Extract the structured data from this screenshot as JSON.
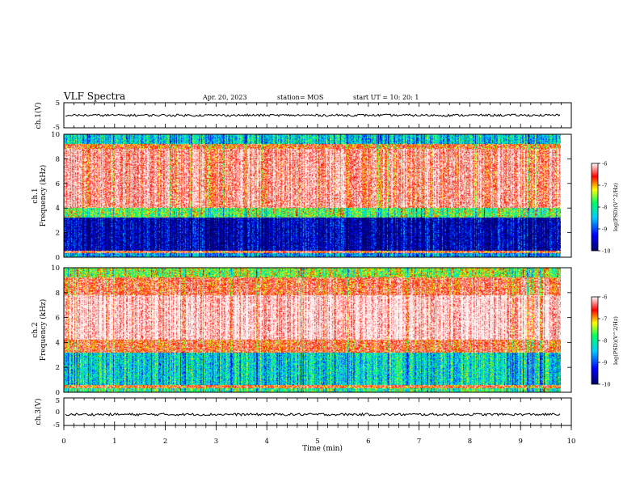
{
  "header": {
    "title": "VLF Spectra",
    "date": "Apr. 20, 2023",
    "station": "station= MOS",
    "start_ut": "start  UT  =   10: 20: 1"
  },
  "chart_data": [
    {
      "type": "line",
      "panel": "ch1-voltage",
      "ylabel": "ch.1(V)",
      "ylim": [
        -5,
        5
      ],
      "yticks": [
        "5",
        "-5"
      ],
      "x_range": [
        0,
        10
      ],
      "trace_level": 0,
      "color": "#000000"
    },
    {
      "type": "heatmap",
      "panel": "ch1-spectrogram",
      "ylabel": "ch.1\nFrequency  (kHz)",
      "ylim": [
        0,
        10
      ],
      "yticks": [
        "0",
        "2",
        "4",
        "6",
        "8",
        "10"
      ],
      "x_range": [
        0,
        9.8
      ],
      "bands": [
        {
          "from": 0,
          "to": 0.3,
          "level": -8.6
        },
        {
          "from": 0.3,
          "to": 0.55,
          "level": -6.4
        },
        {
          "from": 0.55,
          "to": 3.2,
          "level": -9.6
        },
        {
          "from": 3.2,
          "to": 4.0,
          "level": -7.6
        },
        {
          "from": 4.0,
          "to": 8.8,
          "level": -6.0
        },
        {
          "from": 8.8,
          "to": 9.2,
          "level": -6.6
        },
        {
          "from": 9.2,
          "to": 10,
          "level": -8.3
        }
      ],
      "colorbar": {
        "label": "log(PSD)(V^2/Hz)",
        "range": [
          -10,
          -6
        ],
        "ticks": [
          "-6",
          "-7",
          "-8",
          "-9",
          "-10"
        ]
      }
    },
    {
      "type": "heatmap",
      "panel": "ch2-spectrogram",
      "ylabel": "ch.2\nFrequency  (kHz)",
      "ylim": [
        0,
        10
      ],
      "yticks": [
        "0",
        "2",
        "4",
        "6",
        "8",
        "10"
      ],
      "x_range": [
        0,
        9.8
      ],
      "bands": [
        {
          "from": 0,
          "to": 0.3,
          "level": -7.8
        },
        {
          "from": 0.3,
          "to": 0.6,
          "level": -6.5
        },
        {
          "from": 0.6,
          "to": 3.2,
          "level": -8.2
        },
        {
          "from": 3.2,
          "to": 4.2,
          "level": -6.4
        },
        {
          "from": 4.2,
          "to": 7.8,
          "level": -5.6
        },
        {
          "from": 7.8,
          "to": 9.2,
          "level": -6.3
        },
        {
          "from": 9.2,
          "to": 10,
          "level": -7.4
        }
      ],
      "colorbar": {
        "label": "log(PSD)(V^2/Hz)",
        "range": [
          -10,
          -6
        ],
        "ticks": [
          "-6",
          "-7",
          "-8",
          "-9",
          "-10"
        ]
      }
    },
    {
      "type": "line",
      "panel": "ch3-voltage",
      "ylabel": "ch.3(V)",
      "ylim": [
        -5,
        5
      ],
      "yticks": [
        "5",
        "0",
        "-5"
      ],
      "x_range": [
        0,
        10
      ],
      "trace_level": -1,
      "color": "#000000"
    }
  ],
  "xaxis": {
    "label": "Time  (min)",
    "range": [
      0,
      10
    ],
    "ticks": [
      "0",
      "1",
      "2",
      "3",
      "4",
      "5",
      "6",
      "7",
      "8",
      "9",
      "10"
    ]
  },
  "colormap": [
    "#000066",
    "#0000ff",
    "#00ccff",
    "#00ff66",
    "#ffff00",
    "#ff0000",
    "#ffffff"
  ]
}
